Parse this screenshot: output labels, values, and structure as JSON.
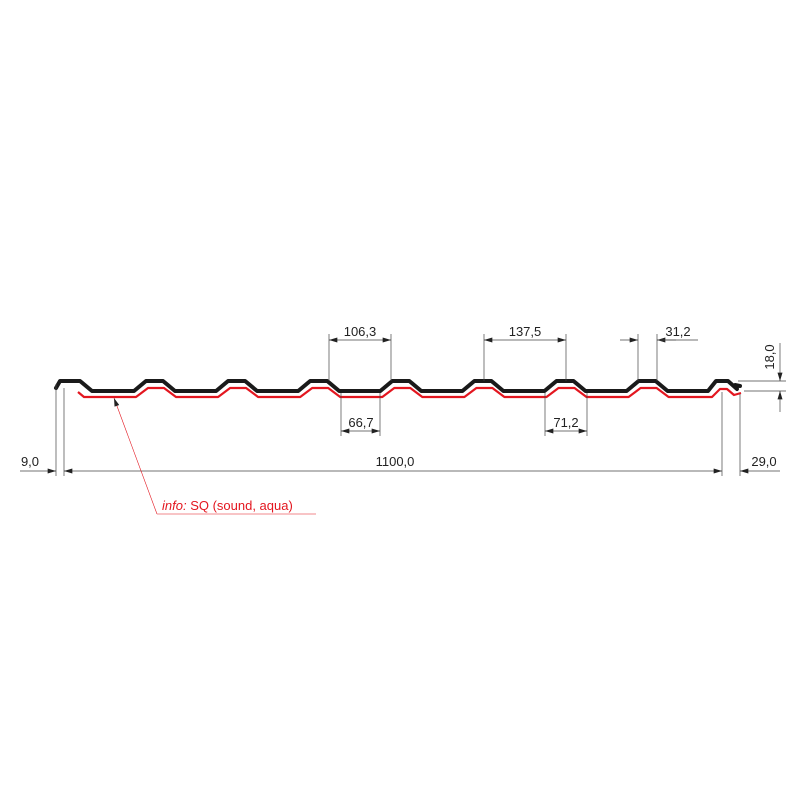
{
  "colors": {
    "profile": "#1a1a1a",
    "coating": "#e3161f",
    "dimension": "#444444"
  },
  "dimensions": {
    "rib_pitch": "106,3",
    "valley_width": "66,7",
    "rib_spacing": "137,5",
    "valley_width_2": "71,2",
    "rib_top": "31,2",
    "height": "18,0",
    "left_overhang": "9,0",
    "cover_width": "1100,0",
    "right_overhang": "29,0"
  },
  "annotation": {
    "prefix": "info:",
    "text": " SQ (sound, aqua)"
  }
}
